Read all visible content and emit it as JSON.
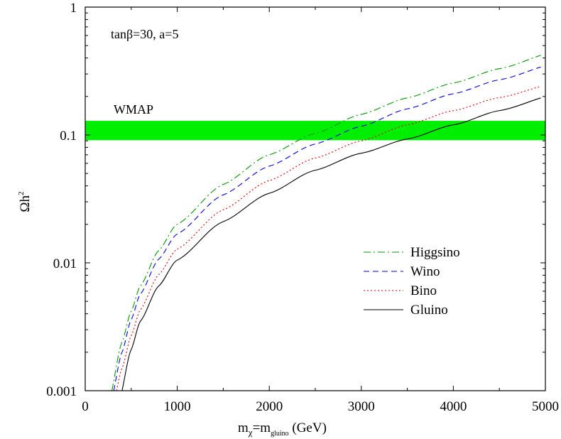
{
  "chart_data": {
    "type": "line",
    "title": "",
    "xlabel": {
      "base": "m",
      "sub1": "χ",
      "mid": "=m",
      "sub2": "gluino",
      "tail": " (GeV)"
    },
    "ylabel": {
      "base": "Ωh",
      "sup": "2"
    },
    "xlim": [
      0,
      5000
    ],
    "ylim": [
      0.001,
      1
    ],
    "y_scale": "log",
    "x_ticks": [
      0,
      1000,
      2000,
      3000,
      4000,
      5000
    ],
    "x_tick_labels": [
      "0",
      "1000",
      "2000",
      "3000",
      "4000",
      "5000"
    ],
    "y_ticks": [
      0.001,
      0.01,
      0.1,
      1
    ],
    "y_tick_labels": [
      "0.001",
      "0.01",
      "0.1",
      "1"
    ],
    "annotation": "tanβ=30, a=5",
    "band": {
      "label": "WMAP",
      "y_low": 0.091,
      "y_high": 0.129,
      "color": "#00ee00"
    },
    "legend_position": "center-right",
    "series": [
      {
        "name": "Higgsino",
        "color": "#009900",
        "dash": "dashdot",
        "x": [
          290,
          400,
          500,
          600,
          800,
          1000,
          1500,
          2000,
          2500,
          3000,
          3500,
          4000,
          4500,
          4950
        ],
        "y": [
          0.001,
          0.0024,
          0.0042,
          0.0066,
          0.0125,
          0.02,
          0.041,
          0.07,
          0.103,
          0.145,
          0.195,
          0.255,
          0.33,
          0.42
        ]
      },
      {
        "name": "Wino",
        "color": "#0000dd",
        "dash": "dashed",
        "x": [
          310,
          400,
          500,
          600,
          800,
          1000,
          1500,
          2000,
          2500,
          3000,
          3500,
          4000,
          4500,
          4950
        ],
        "y": [
          0.001,
          0.002,
          0.0036,
          0.0057,
          0.0107,
          0.0168,
          0.034,
          0.057,
          0.085,
          0.117,
          0.16,
          0.21,
          0.27,
          0.34
        ]
      },
      {
        "name": "Bino",
        "color": "#dd0000",
        "dash": "dotted",
        "x": [
          340,
          400,
          500,
          600,
          800,
          1000,
          1500,
          2000,
          2500,
          3000,
          3500,
          4000,
          4500,
          4950
        ],
        "y": [
          0.001,
          0.0015,
          0.0027,
          0.0043,
          0.0081,
          0.0128,
          0.026,
          0.044,
          0.066,
          0.09,
          0.12,
          0.155,
          0.196,
          0.24
        ]
      },
      {
        "name": "Gluino",
        "color": "#000000",
        "dash": "solid",
        "x": [
          400,
          500,
          600,
          800,
          1000,
          1500,
          2000,
          2500,
          3000,
          3500,
          4000,
          4500,
          4950
        ],
        "y": [
          0.001,
          0.0021,
          0.0035,
          0.0066,
          0.0105,
          0.021,
          0.035,
          0.053,
          0.072,
          0.093,
          0.12,
          0.155,
          0.195
        ]
      }
    ]
  }
}
